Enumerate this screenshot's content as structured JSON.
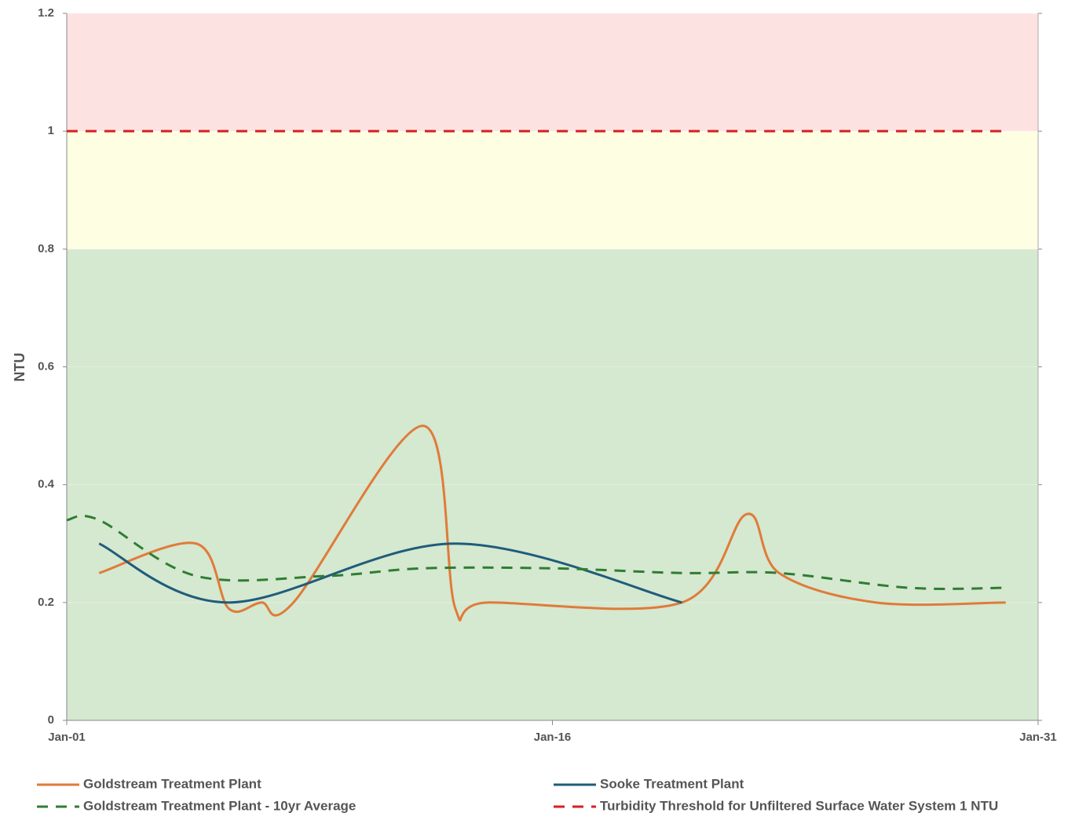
{
  "chart_data": {
    "type": "line",
    "y_label": "NTU",
    "xlim": [
      1,
      31
    ],
    "xticks": [
      {
        "value": 1,
        "label": "Jan-01"
      },
      {
        "value": 16,
        "label": "Jan-16"
      },
      {
        "value": 31,
        "label": "Jan-31"
      }
    ],
    "ylim": [
      0,
      1.2
    ],
    "yticks": [
      0,
      0.2,
      0.4,
      0.6,
      0.8,
      1,
      {
        "value": 1.2,
        "label": "1.2"
      }
    ],
    "bands": [
      {
        "from": 0,
        "to": 0.8,
        "color": "#d5e8d0"
      },
      {
        "from": 0.8,
        "to": 1,
        "color": "#fefee2"
      },
      {
        "from": 1,
        "to": 1.2,
        "color": "#fde2e2"
      }
    ],
    "series": [
      {
        "name": "Goldstream Treatment Plant",
        "color": "#e07b39",
        "dash": false,
        "x": [
          2,
          5,
          6,
          7,
          8,
          12,
          13,
          14,
          20,
          22,
          23,
          26,
          30
        ],
        "values": [
          0.25,
          0.3,
          0.19,
          0.2,
          0.2,
          0.5,
          0.19,
          0.2,
          0.2,
          0.35,
          0.25,
          0.2,
          0.2
        ]
      },
      {
        "name": "Sooke Treatment Plant",
        "color": "#1f5c7a",
        "dash": false,
        "x": [
          2,
          6,
          13,
          20
        ],
        "values": [
          0.3,
          0.2,
          0.3,
          0.2
        ]
      },
      {
        "name": "Goldstream Treatment Plant - 10yr Average",
        "color": "#2e7d32",
        "dash": true,
        "x": [
          1,
          2,
          5,
          9,
          12,
          16,
          20,
          23,
          27,
          30
        ],
        "values": [
          0.34,
          0.34,
          0.245,
          0.245,
          0.258,
          0.258,
          0.25,
          0.25,
          0.225,
          0.225
        ]
      },
      {
        "name": "Turbidity Threshold for Unfiltered Surface Water System 1 NTU",
        "color": "#d62020",
        "dash": true,
        "x": [
          1,
          30
        ],
        "values": [
          1,
          1
        ]
      }
    ]
  }
}
